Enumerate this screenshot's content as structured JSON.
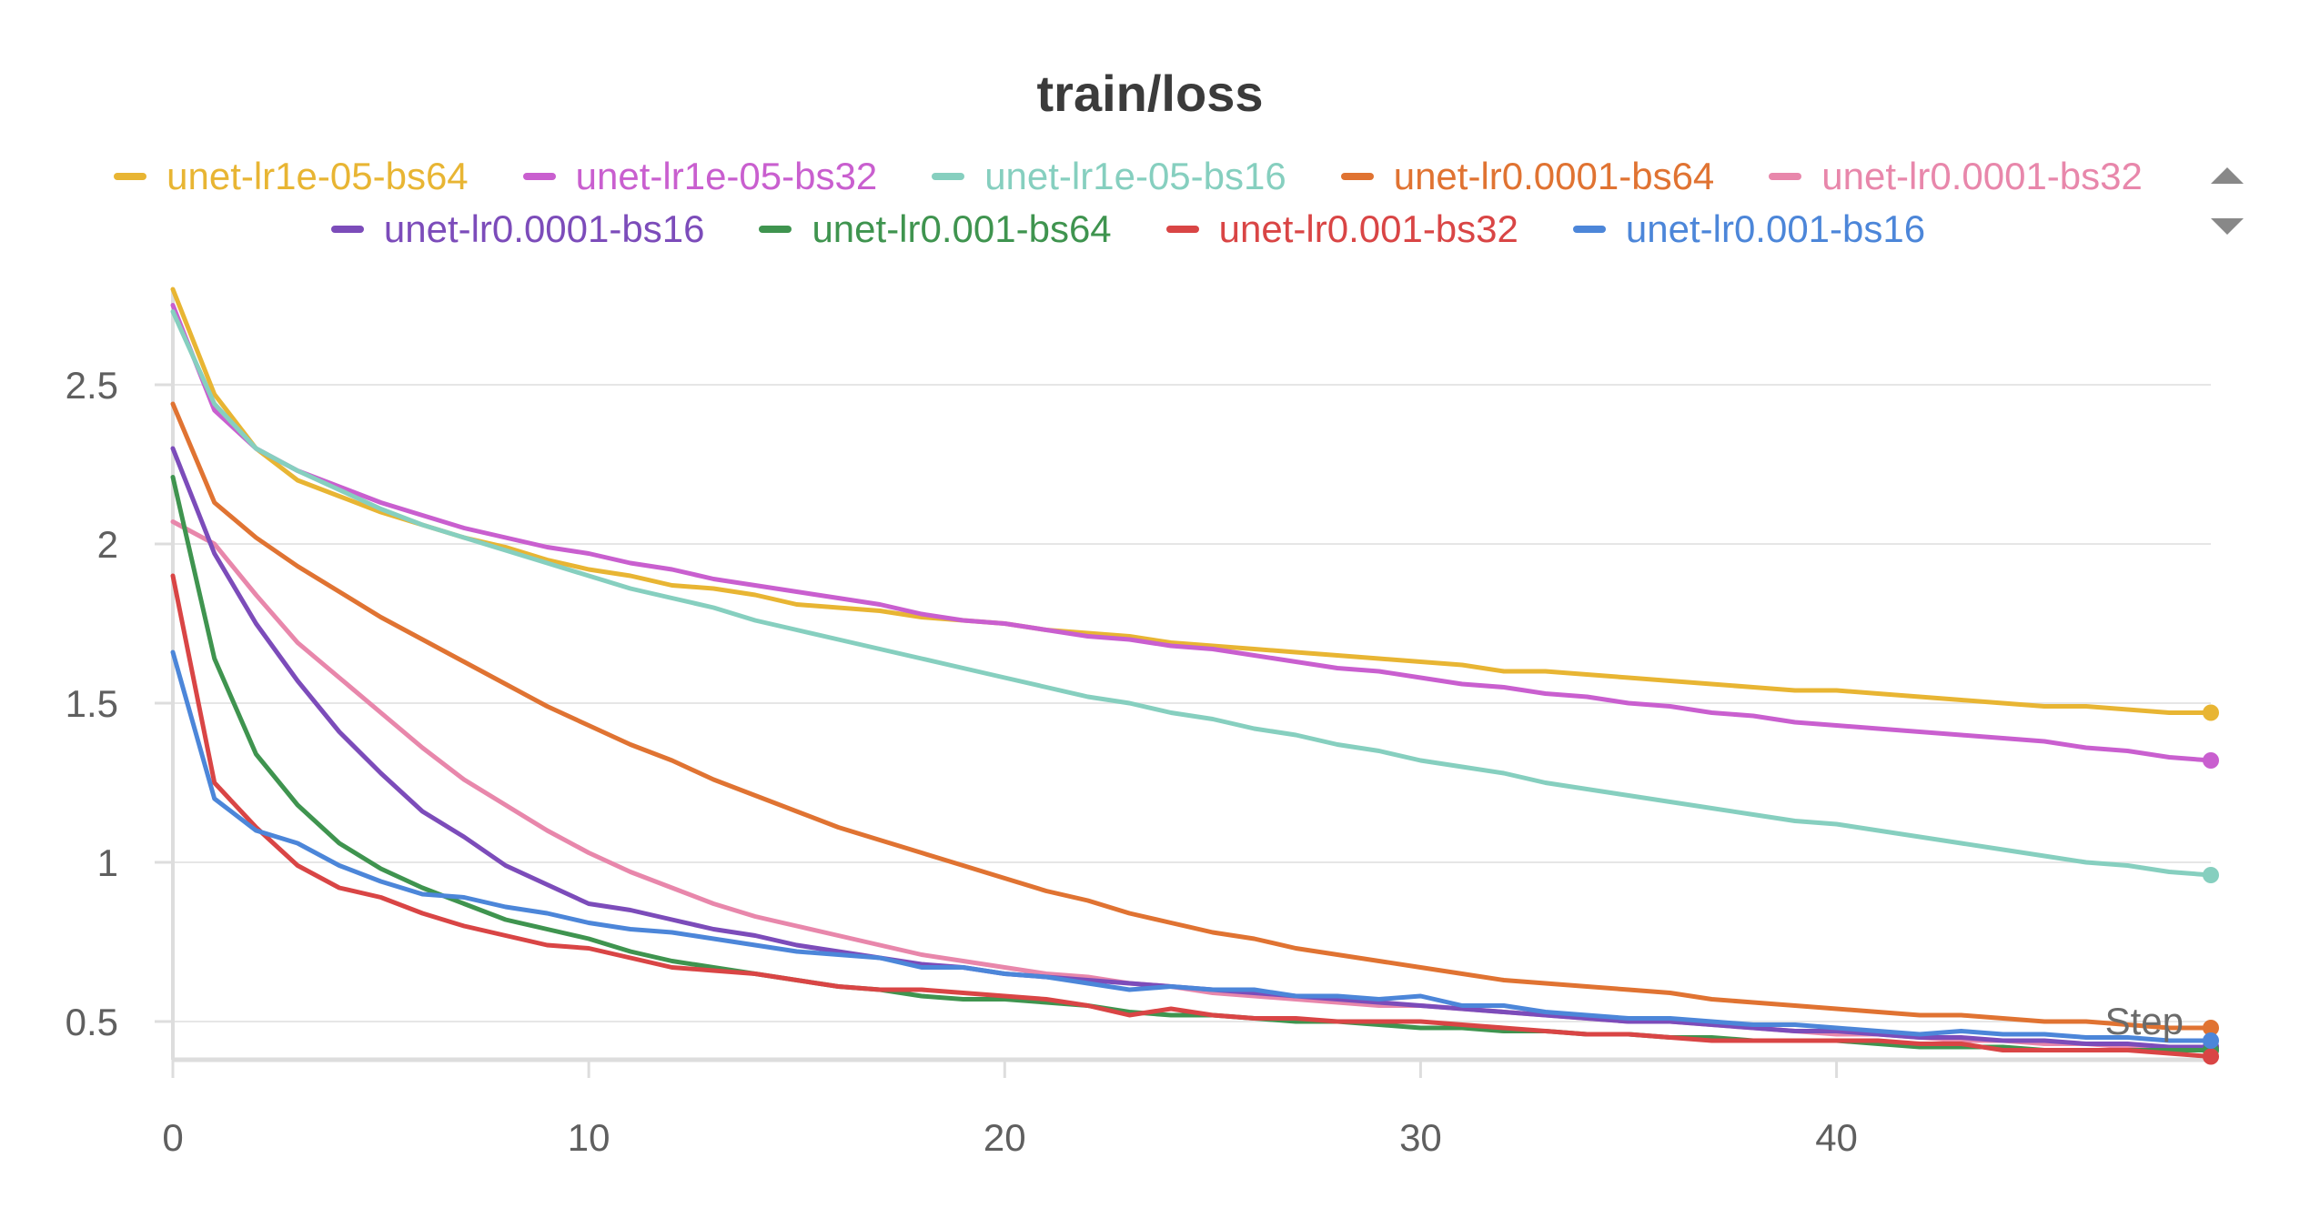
{
  "chart_data": {
    "type": "line",
    "title": "train/loss",
    "xlabel": "Step",
    "ylabel": "",
    "xlim": [
      0,
      49
    ],
    "ylim": [
      0.38,
      2.8
    ],
    "grid": true,
    "legend_position": "top",
    "x_ticks": [
      "0",
      "10",
      "20",
      "30",
      "40"
    ],
    "y_ticks": [
      "0.5",
      "1",
      "1.5",
      "2",
      "2.5"
    ],
    "x": [
      0,
      1,
      2,
      3,
      4,
      5,
      6,
      7,
      8,
      9,
      10,
      11,
      12,
      13,
      14,
      15,
      16,
      17,
      18,
      19,
      20,
      21,
      22,
      23,
      24,
      25,
      26,
      27,
      28,
      29,
      30,
      31,
      32,
      33,
      34,
      35,
      36,
      37,
      38,
      39,
      40,
      41,
      42,
      43,
      44,
      45,
      46,
      47,
      48,
      49
    ],
    "series": [
      {
        "name": "unet-lr1e-05-bs64",
        "color": "#e8b533",
        "values": [
          2.8,
          2.47,
          2.3,
          2.2,
          2.15,
          2.1,
          2.06,
          2.02,
          1.99,
          1.95,
          1.92,
          1.9,
          1.87,
          1.86,
          1.84,
          1.81,
          1.8,
          1.79,
          1.77,
          1.76,
          1.75,
          1.73,
          1.72,
          1.71,
          1.69,
          1.68,
          1.67,
          1.66,
          1.65,
          1.64,
          1.63,
          1.62,
          1.6,
          1.6,
          1.59,
          1.58,
          1.57,
          1.56,
          1.55,
          1.54,
          1.54,
          1.53,
          1.52,
          1.51,
          1.5,
          1.49,
          1.49,
          1.48,
          1.47,
          1.47
        ]
      },
      {
        "name": "unet-lr1e-05-bs32",
        "color": "#c95fcf",
        "values": [
          2.75,
          2.42,
          2.3,
          2.23,
          2.18,
          2.13,
          2.09,
          2.05,
          2.02,
          1.99,
          1.97,
          1.94,
          1.92,
          1.89,
          1.87,
          1.85,
          1.83,
          1.81,
          1.78,
          1.76,
          1.75,
          1.73,
          1.71,
          1.7,
          1.68,
          1.67,
          1.65,
          1.63,
          1.61,
          1.6,
          1.58,
          1.56,
          1.55,
          1.53,
          1.52,
          1.5,
          1.49,
          1.47,
          1.46,
          1.44,
          1.43,
          1.42,
          1.41,
          1.4,
          1.39,
          1.38,
          1.36,
          1.35,
          1.33,
          1.32
        ]
      },
      {
        "name": "unet-lr1e-05-bs16",
        "color": "#86cfbf",
        "values": [
          2.73,
          2.44,
          2.3,
          2.23,
          2.17,
          2.11,
          2.06,
          2.02,
          1.98,
          1.94,
          1.9,
          1.86,
          1.83,
          1.8,
          1.76,
          1.73,
          1.7,
          1.67,
          1.64,
          1.61,
          1.58,
          1.55,
          1.52,
          1.5,
          1.47,
          1.45,
          1.42,
          1.4,
          1.37,
          1.35,
          1.32,
          1.3,
          1.28,
          1.25,
          1.23,
          1.21,
          1.19,
          1.17,
          1.15,
          1.13,
          1.12,
          1.1,
          1.08,
          1.06,
          1.04,
          1.02,
          1.0,
          0.99,
          0.97,
          0.96
        ]
      },
      {
        "name": "unet-lr0.0001-bs64",
        "color": "#e07332",
        "values": [
          2.44,
          2.13,
          2.02,
          1.93,
          1.85,
          1.77,
          1.7,
          1.63,
          1.56,
          1.49,
          1.43,
          1.37,
          1.32,
          1.26,
          1.21,
          1.16,
          1.11,
          1.07,
          1.03,
          0.99,
          0.95,
          0.91,
          0.88,
          0.84,
          0.81,
          0.78,
          0.76,
          0.73,
          0.71,
          0.69,
          0.67,
          0.65,
          0.63,
          0.62,
          0.61,
          0.6,
          0.59,
          0.57,
          0.56,
          0.55,
          0.54,
          0.53,
          0.52,
          0.52,
          0.51,
          0.5,
          0.5,
          0.49,
          0.48,
          0.48
        ]
      },
      {
        "name": "unet-lr0.0001-bs32",
        "color": "#e887ab",
        "values": [
          2.07,
          2.0,
          1.84,
          1.69,
          1.58,
          1.47,
          1.36,
          1.26,
          1.18,
          1.1,
          1.03,
          0.97,
          0.92,
          0.87,
          0.83,
          0.8,
          0.77,
          0.74,
          0.71,
          0.69,
          0.67,
          0.65,
          0.64,
          0.62,
          0.61,
          0.59,
          0.58,
          0.57,
          0.56,
          0.55,
          0.55,
          0.54,
          0.53,
          0.52,
          0.51,
          0.5,
          0.5,
          0.49,
          0.48,
          0.47,
          0.46,
          0.46,
          0.45,
          0.44,
          0.44,
          0.43,
          0.43,
          0.42,
          0.42,
          0.42
        ]
      },
      {
        "name": "unet-lr0.0001-bs16",
        "color": "#7c4cba",
        "values": [
          2.3,
          1.97,
          1.75,
          1.57,
          1.41,
          1.28,
          1.16,
          1.08,
          0.99,
          0.93,
          0.87,
          0.85,
          0.82,
          0.79,
          0.77,
          0.74,
          0.72,
          0.7,
          0.68,
          0.67,
          0.65,
          0.64,
          0.63,
          0.62,
          0.61,
          0.6,
          0.59,
          0.58,
          0.57,
          0.56,
          0.55,
          0.54,
          0.53,
          0.52,
          0.51,
          0.5,
          0.5,
          0.49,
          0.48,
          0.47,
          0.47,
          0.46,
          0.45,
          0.45,
          0.44,
          0.44,
          0.43,
          0.43,
          0.42,
          0.42
        ]
      },
      {
        "name": "unet-lr0.001-bs64",
        "color": "#3f944f",
        "values": [
          2.21,
          1.64,
          1.34,
          1.18,
          1.06,
          0.98,
          0.92,
          0.87,
          0.82,
          0.79,
          0.76,
          0.72,
          0.69,
          0.67,
          0.65,
          0.63,
          0.61,
          0.6,
          0.58,
          0.57,
          0.57,
          0.56,
          0.55,
          0.53,
          0.52,
          0.52,
          0.51,
          0.5,
          0.5,
          0.49,
          0.48,
          0.48,
          0.47,
          0.47,
          0.46,
          0.46,
          0.45,
          0.45,
          0.44,
          0.44,
          0.44,
          0.43,
          0.42,
          0.42,
          0.42,
          0.41,
          0.41,
          0.41,
          0.41,
          0.41
        ]
      },
      {
        "name": "unet-lr0.001-bs32",
        "color": "#d94545",
        "values": [
          1.9,
          1.25,
          1.11,
          0.99,
          0.92,
          0.89,
          0.84,
          0.8,
          0.77,
          0.74,
          0.73,
          0.7,
          0.67,
          0.66,
          0.65,
          0.63,
          0.61,
          0.6,
          0.6,
          0.59,
          0.58,
          0.57,
          0.55,
          0.52,
          0.54,
          0.52,
          0.51,
          0.51,
          0.5,
          0.5,
          0.5,
          0.49,
          0.48,
          0.47,
          0.46,
          0.46,
          0.45,
          0.44,
          0.44,
          0.44,
          0.44,
          0.44,
          0.43,
          0.43,
          0.41,
          0.41,
          0.41,
          0.41,
          0.4,
          0.39
        ]
      },
      {
        "name": "unet-lr0.001-bs16",
        "color": "#4c86d9",
        "values": [
          1.66,
          1.2,
          1.1,
          1.06,
          0.99,
          0.94,
          0.9,
          0.89,
          0.86,
          0.84,
          0.81,
          0.79,
          0.78,
          0.76,
          0.74,
          0.72,
          0.71,
          0.7,
          0.67,
          0.67,
          0.65,
          0.64,
          0.62,
          0.6,
          0.61,
          0.6,
          0.6,
          0.58,
          0.58,
          0.57,
          0.58,
          0.55,
          0.55,
          0.53,
          0.52,
          0.51,
          0.51,
          0.5,
          0.49,
          0.49,
          0.48,
          0.47,
          0.46,
          0.47,
          0.46,
          0.46,
          0.45,
          0.45,
          0.44,
          0.44
        ]
      }
    ]
  }
}
